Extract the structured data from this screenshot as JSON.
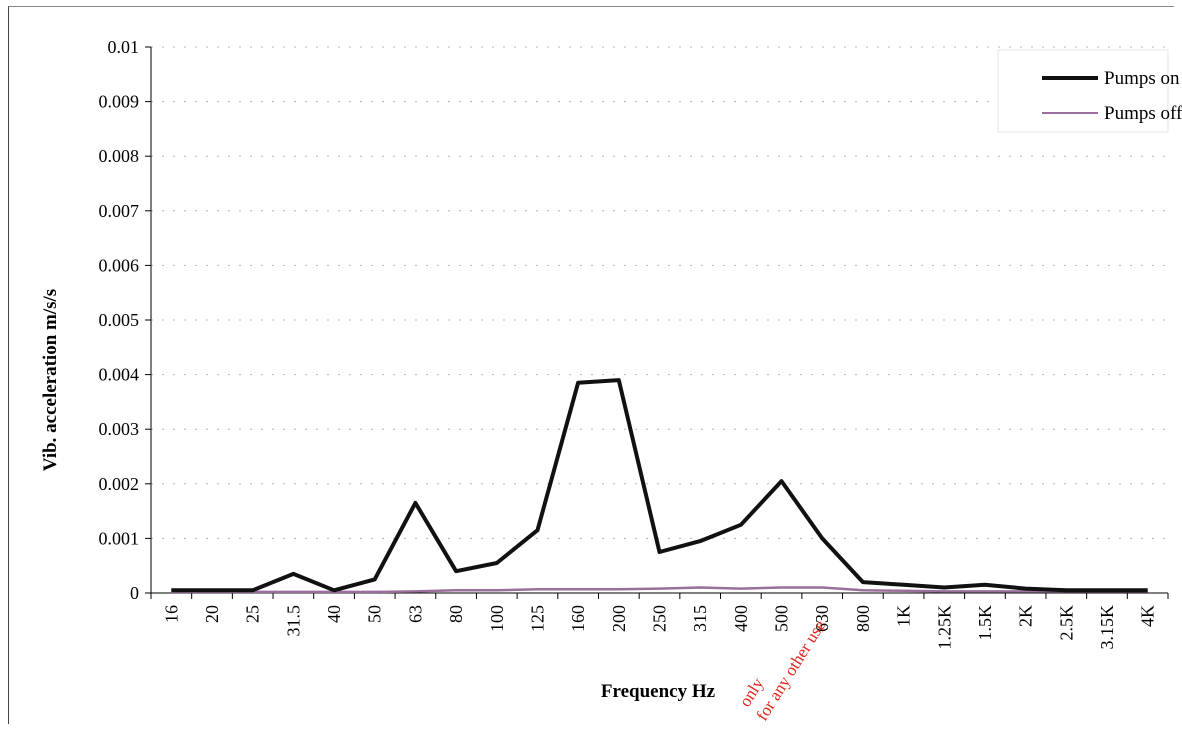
{
  "chart_data": {
    "type": "line",
    "title": "",
    "xlabel": "Frequency Hz",
    "ylabel": "Vib. acceleration m/s/s",
    "categories": [
      "16",
      "20",
      "25",
      "31.5",
      "40",
      "50",
      "63",
      "80",
      "100",
      "125",
      "160",
      "200",
      "250",
      "315",
      "400",
      "500",
      "630",
      "800",
      "1K",
      "1.25K",
      "1.5K",
      "2K",
      "2.5K",
      "3.15K",
      "4K"
    ],
    "ylim": [
      0,
      0.01
    ],
    "yticks": [
      "0",
      "0.001",
      "0.002",
      "0.003",
      "0.004",
      "0.005",
      "0.006",
      "0.007",
      "0.008",
      "0.009",
      "0.01"
    ],
    "grid": true,
    "legend_position": "top-right",
    "series": [
      {
        "name": "Pumps on",
        "color": "#111111",
        "values": [
          5e-05,
          5e-05,
          5e-05,
          0.00035,
          5e-05,
          0.00025,
          0.00165,
          0.0004,
          0.00055,
          0.00115,
          0.00385,
          0.0039,
          0.00075,
          0.00095,
          0.00125,
          0.00205,
          0.001,
          0.0002,
          0.00015,
          0.0001,
          0.00015,
          8e-05,
          5e-05,
          5e-05,
          5e-05
        ]
      },
      {
        "name": "Pumps off",
        "color": "#9b6f9b",
        "values": [
          2e-05,
          2e-05,
          2e-05,
          2e-05,
          2e-05,
          2e-05,
          3e-05,
          5e-05,
          5e-05,
          7e-05,
          7e-05,
          7e-05,
          8e-05,
          0.0001,
          8e-05,
          0.0001,
          0.0001,
          5e-05,
          4e-05,
          3e-05,
          3e-05,
          3e-05,
          3e-05,
          3e-05,
          3e-05
        ]
      }
    ]
  },
  "watermark": {
    "line1": "only",
    "line2": "for any other use"
  }
}
